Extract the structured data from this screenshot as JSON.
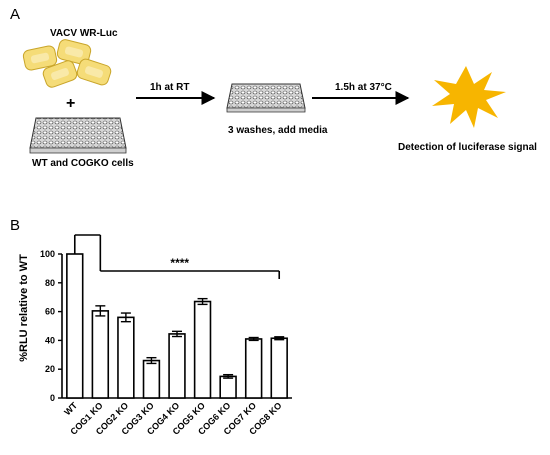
{
  "panel_a": {
    "label": "A",
    "virus_label": "VACV WR-Luc",
    "plus": "+",
    "cells_label": "WT and COGKO cells",
    "step1_label": "1h at RT",
    "step2_label": "3 washes, add media",
    "step3_label": "1.5h at 37°C",
    "result_label": "Detection of luciferase signal",
    "colors": {
      "virus": "#f5dc78",
      "virus_edge": "#c9a52a",
      "burst": "#f7b500",
      "plate_grid": "#444444"
    },
    "icons": [
      "virus-particle-icon",
      "plate-icon",
      "arrow-icon",
      "burst-icon"
    ]
  },
  "panel_b": {
    "label": "B",
    "chart_data": {
      "type": "bar",
      "categories": [
        "WT",
        "COG1 KO",
        "COG2 KO",
        "COG3 KO",
        "COG4 KO",
        "COG5 KO",
        "COG6 KO",
        "COG7 KO",
        "COG8 KO"
      ],
      "values": [
        100,
        60.5,
        56,
        26,
        44.5,
        67,
        15,
        41,
        41.5
      ],
      "errors": [
        0,
        3.5,
        3,
        2,
        1.8,
        2,
        1.2,
        1,
        1
      ],
      "ylabel": "%RLU relative to WT",
      "xlabel": "",
      "ylim": [
        0,
        100
      ],
      "yticks": [
        0,
        20,
        40,
        60,
        80,
        100
      ],
      "significance": "****",
      "grid": false,
      "bar_fill": "#ffffff",
      "bar_edge": "#000000"
    }
  }
}
